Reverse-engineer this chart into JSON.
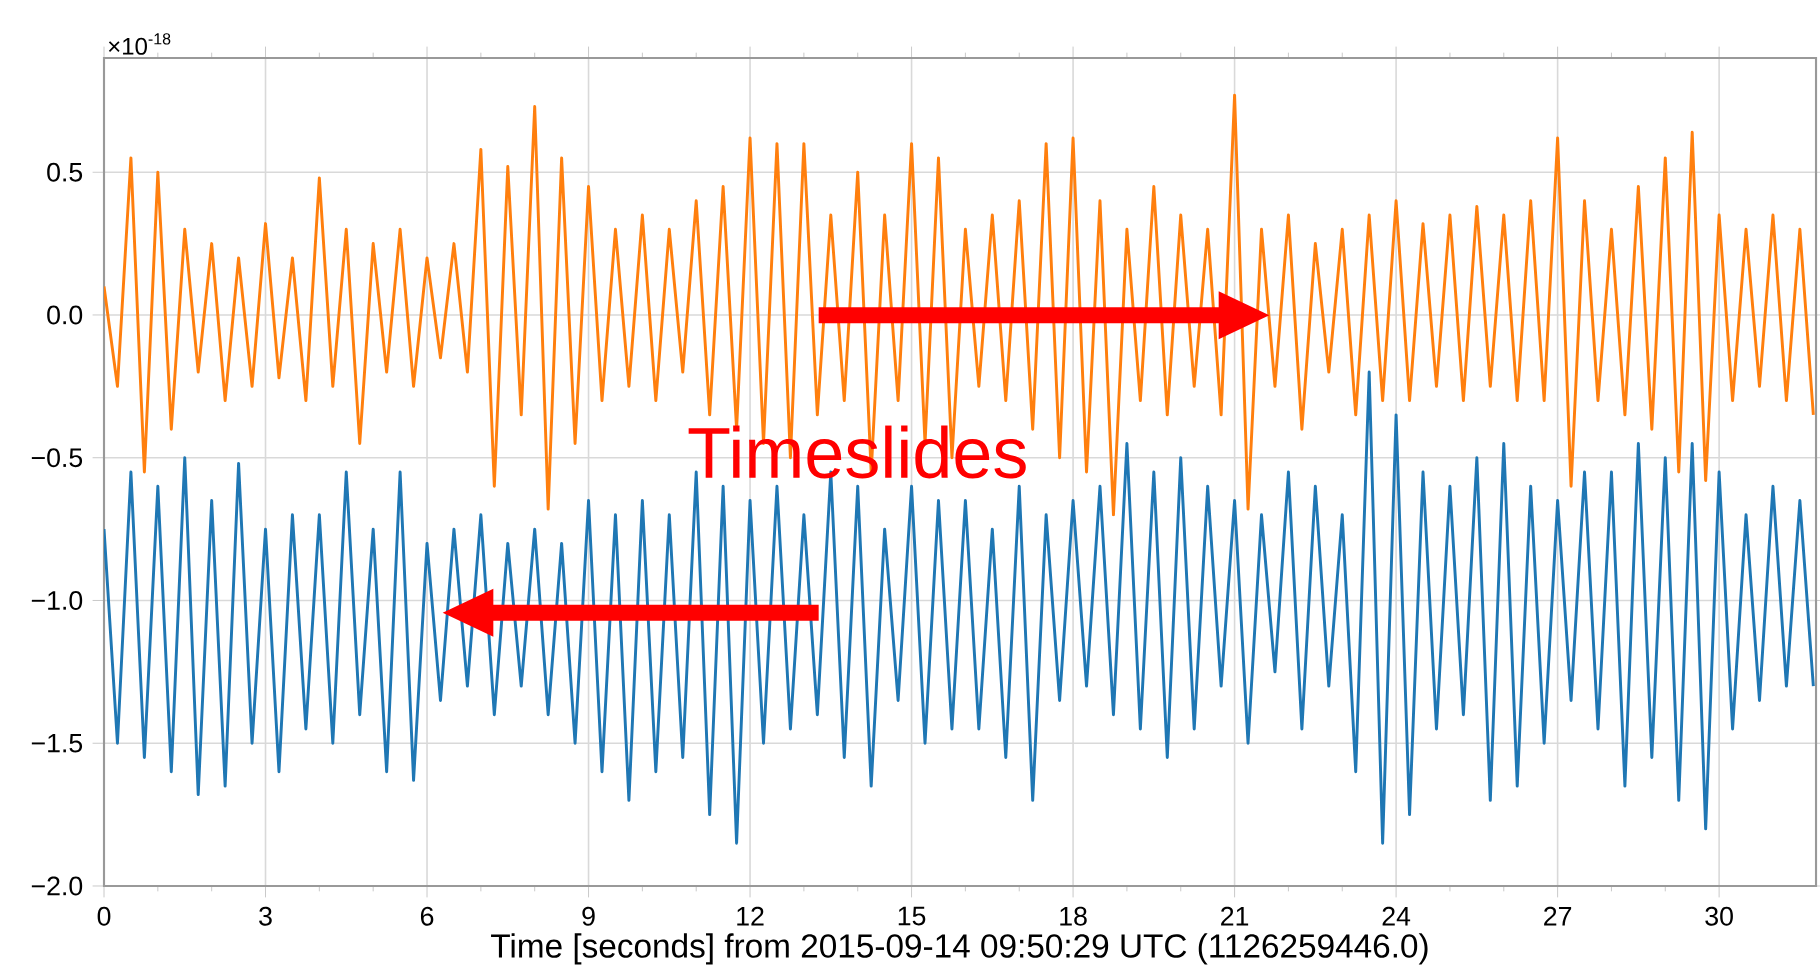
{
  "chart_data": {
    "type": "line",
    "xlabel": "Time [seconds] from 2015-09-14 09:50:29 UTC (1126259446.0)",
    "annotations": [
      "×10$^{-18}$",
      "Timeslides"
    ],
    "xlim": [
      0,
      31.8
    ],
    "ylim": [
      -2.0,
      0.9
    ],
    "xticks": [
      0,
      3,
      6,
      9,
      12,
      15,
      18,
      21,
      24,
      27,
      30
    ],
    "yticks": [
      {
        "value": -2.0,
        "label": "−2.0"
      },
      {
        "value": -1.5,
        "label": "−1.5"
      },
      {
        "value": -1.0,
        "label": "−1.0"
      },
      {
        "value": -0.5,
        "label": "−0.5"
      },
      {
        "value": 0.0,
        "label": "0.0"
      },
      {
        "value": 0.5,
        "label": "0.5"
      }
    ],
    "grid": true,
    "marker": "none",
    "line_style": "solid",
    "x": [
      0,
      0.25,
      0.5,
      0.75,
      1,
      1.25,
      1.5,
      1.75,
      2,
      2.25,
      2.5,
      2.75,
      3,
      3.25,
      3.5,
      3.75,
      4,
      4.25,
      4.5,
      4.75,
      5,
      5.25,
      5.5,
      5.75,
      6,
      6.25,
      6.5,
      6.75,
      7,
      7.25,
      7.5,
      7.75,
      8,
      8.25,
      8.5,
      8.75,
      9,
      9.25,
      9.5,
      9.75,
      10,
      10.25,
      10.5,
      10.75,
      11,
      11.25,
      11.5,
      11.75,
      12,
      12.25,
      12.5,
      12.75,
      13,
      13.25,
      13.5,
      13.75,
      14,
      14.25,
      14.5,
      14.75,
      15,
      15.25,
      15.5,
      15.75,
      16,
      16.25,
      16.5,
      16.75,
      17,
      17.25,
      17.5,
      17.75,
      18,
      18.25,
      18.5,
      18.75,
      19,
      19.25,
      19.5,
      19.75,
      20,
      20.25,
      20.5,
      20.75,
      21,
      21.25,
      21.5,
      21.75,
      22,
      22.25,
      22.5,
      22.75,
      23,
      23.25,
      23.5,
      23.75,
      24,
      24.25,
      24.5,
      24.75,
      25,
      25.25,
      25.5,
      25.75,
      26,
      26.25,
      26.5,
      26.75,
      27,
      27.25,
      27.5,
      27.75,
      28,
      28.25,
      28.5,
      28.75,
      29,
      29.25,
      29.5,
      29.75,
      30,
      30.25,
      30.5,
      30.75,
      31,
      31.25,
      31.5,
      31.75
    ],
    "series": [
      {
        "color": "#1f77b4",
        "values": [
          -0.75,
          -1.5,
          -0.55,
          -1.55,
          -0.6,
          -1.6,
          -0.5,
          -1.68,
          -0.65,
          -1.65,
          -0.52,
          -1.5,
          -0.75,
          -1.6,
          -0.7,
          -1.45,
          -0.7,
          -1.5,
          -0.55,
          -1.4,
          -0.75,
          -1.6,
          -0.55,
          -1.63,
          -0.8,
          -1.35,
          -0.75,
          -1.3,
          -0.7,
          -1.4,
          -0.8,
          -1.3,
          -0.75,
          -1.4,
          -0.8,
          -1.5,
          -0.65,
          -1.6,
          -0.7,
          -1.7,
          -0.65,
          -1.6,
          -0.7,
          -1.55,
          -0.55,
          -1.75,
          -0.6,
          -1.85,
          -0.65,
          -1.5,
          -0.6,
          -1.45,
          -0.7,
          -1.4,
          -0.55,
          -1.55,
          -0.6,
          -1.65,
          -0.75,
          -1.35,
          -0.6,
          -1.5,
          -0.65,
          -1.45,
          -0.65,
          -1.45,
          -0.75,
          -1.55,
          -0.6,
          -1.7,
          -0.7,
          -1.35,
          -0.65,
          -1.3,
          -0.6,
          -1.4,
          -0.45,
          -1.45,
          -0.55,
          -1.55,
          -0.5,
          -1.45,
          -0.6,
          -1.3,
          -0.65,
          -1.5,
          -0.7,
          -1.25,
          -0.55,
          -1.45,
          -0.6,
          -1.3,
          -0.7,
          -1.6,
          -0.2,
          -1.85,
          -0.35,
          -1.75,
          -0.55,
          -1.45,
          -0.6,
          -1.4,
          -0.5,
          -1.7,
          -0.45,
          -1.65,
          -0.6,
          -1.5,
          -0.65,
          -1.35,
          -0.55,
          -1.45,
          -0.55,
          -1.65,
          -0.45,
          -1.55,
          -0.5,
          -1.7,
          -0.45,
          -1.8,
          -0.55,
          -1.45,
          -0.7,
          -1.35,
          -0.6,
          -1.3,
          -0.65,
          -1.3
        ]
      },
      {
        "color": "#ff7f0e",
        "values": [
          0.1,
          -0.25,
          0.55,
          -0.55,
          0.5,
          -0.4,
          0.3,
          -0.2,
          0.25,
          -0.3,
          0.2,
          -0.25,
          0.32,
          -0.22,
          0.2,
          -0.3,
          0.48,
          -0.25,
          0.3,
          -0.45,
          0.25,
          -0.2,
          0.3,
          -0.25,
          0.2,
          -0.15,
          0.25,
          -0.2,
          0.58,
          -0.6,
          0.52,
          -0.35,
          0.73,
          -0.68,
          0.55,
          -0.45,
          0.45,
          -0.3,
          0.3,
          -0.25,
          0.35,
          -0.3,
          0.3,
          -0.2,
          0.4,
          -0.35,
          0.45,
          -0.4,
          0.62,
          -0.45,
          0.6,
          -0.5,
          0.6,
          -0.35,
          0.35,
          -0.3,
          0.5,
          -0.55,
          0.35,
          -0.3,
          0.6,
          -0.45,
          0.55,
          -0.5,
          0.3,
          -0.25,
          0.35,
          -0.3,
          0.4,
          -0.4,
          0.6,
          -0.5,
          0.62,
          -0.55,
          0.4,
          -0.7,
          0.3,
          -0.3,
          0.45,
          -0.35,
          0.35,
          -0.25,
          0.3,
          -0.35,
          0.77,
          -0.68,
          0.3,
          -0.25,
          0.35,
          -0.4,
          0.25,
          -0.2,
          0.3,
          -0.35,
          0.35,
          -0.3,
          0.4,
          -0.3,
          0.32,
          -0.25,
          0.35,
          -0.3,
          0.38,
          -0.25,
          0.35,
          -0.3,
          0.4,
          -0.3,
          0.62,
          -0.6,
          0.4,
          -0.3,
          0.3,
          -0.35,
          0.45,
          -0.4,
          0.55,
          -0.55,
          0.64,
          -0.58,
          0.35,
          -0.3,
          0.3,
          -0.25,
          0.35,
          -0.3,
          0.3,
          -0.35
        ]
      }
    ]
  }
}
